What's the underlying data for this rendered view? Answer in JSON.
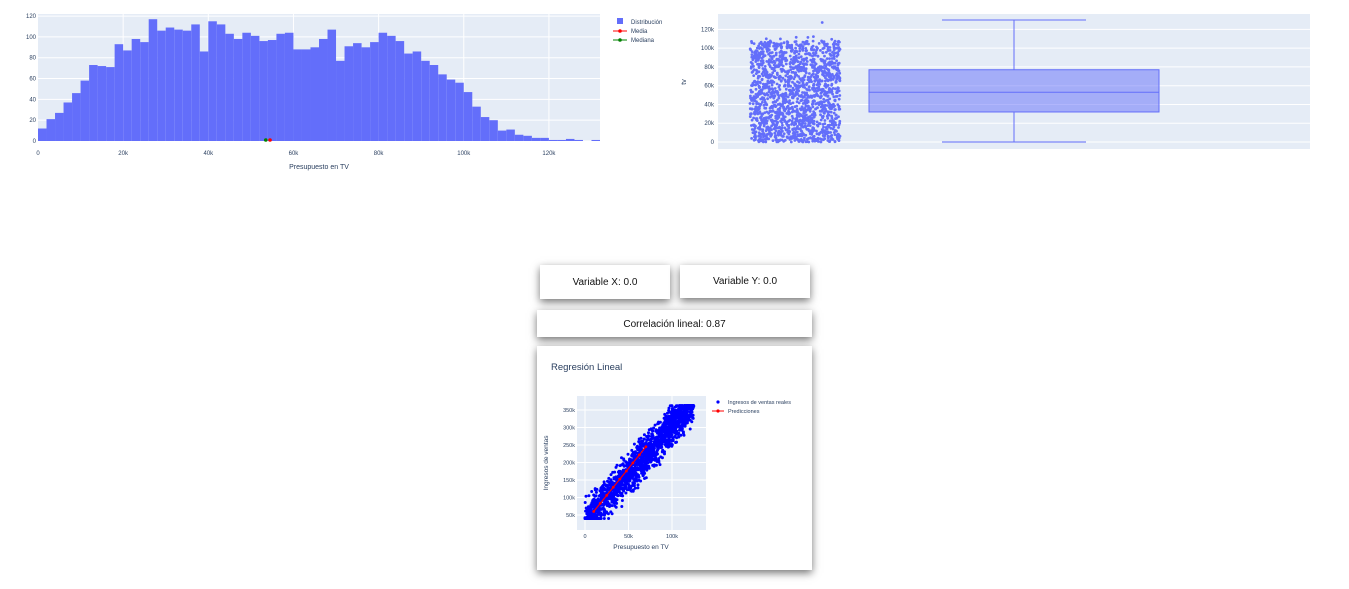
{
  "histogram": {
    "xlabel": "Presupuesto en TV",
    "x_ticks": [
      "0",
      "20k",
      "40k",
      "60k",
      "80k",
      "100k",
      "120k"
    ],
    "y_ticks": [
      "0",
      "20",
      "40",
      "60",
      "80",
      "100",
      "120"
    ],
    "legend": {
      "dist": "Distribución",
      "mean": "Media",
      "median": "Mediana"
    },
    "colors": {
      "bars": "#636efa",
      "mean": "#ff0000",
      "median": "#008000",
      "plot_bg": "#e5ecf6"
    }
  },
  "boxplot": {
    "ylabel": "tv",
    "y_ticks": [
      "0",
      "20k",
      "40k",
      "60k",
      "80k",
      "100k",
      "120k"
    ],
    "color": "#636efa"
  },
  "variable_x": "Variable X: 0.0",
  "variable_y": "Variable Y: 0.0",
  "correlation": "Correlación lineal: 0.87",
  "regression": {
    "title": "Regresión Lineal",
    "xlabel": "Presupuesto en TV",
    "ylabel": "Ingresos de ventas",
    "x_ticks": [
      "0",
      "50k",
      "100k"
    ],
    "y_ticks": [
      "50k",
      "100k",
      "150k",
      "200k",
      "250k",
      "300k",
      "350k"
    ],
    "legend": {
      "real": "Ingresos de ventas reales",
      "pred": "Predicciones"
    },
    "colors": {
      "points": "#0000ff",
      "line": "#ff0000"
    }
  },
  "chart_data": [
    {
      "type": "bar",
      "xlabel": "Presupuesto en TV",
      "ylabel": "",
      "xlim": [
        0,
        132000
      ],
      "ylim": [
        0,
        122
      ],
      "bin_width": 2000,
      "bin_start": 0,
      "values": [
        12,
        21,
        27,
        37,
        46,
        58,
        73,
        72,
        71,
        93,
        87,
        98,
        95,
        117,
        106,
        109,
        107,
        106,
        112,
        86,
        115,
        112,
        103,
        98,
        104,
        101,
        96,
        97,
        103,
        104,
        88,
        88,
        90,
        98,
        107,
        77,
        91,
        94,
        90,
        95,
        104,
        101,
        96,
        84,
        86,
        77,
        73,
        64,
        59,
        56,
        47,
        33,
        23,
        20,
        10,
        11,
        6,
        5,
        3,
        3,
        1,
        1,
        2,
        1,
        0,
        1
      ],
      "mean": 54500,
      "median": 53500,
      "legend": [
        "Distribución",
        "Media",
        "Mediana"
      ],
      "grid": true,
      "legend_position": "right"
    },
    {
      "type": "box",
      "ylabel": "tv",
      "ylim": [
        0,
        130000
      ],
      "min": 0,
      "q1": 32000,
      "median": 53000,
      "q3": 77000,
      "max": 130000,
      "points": "all",
      "grid": true
    },
    {
      "type": "scatter",
      "title": "Regresión Lineal",
      "xlabel": "Presupuesto en TV",
      "ylabel": "Ingresos de ventas",
      "xlim": [
        -5000,
        140000
      ],
      "ylim": [
        20000,
        370000
      ],
      "series": [
        {
          "name": "Ingresos de ventas reales",
          "distribution": "y ≈ 2.75·x + 30000, x in [0, 125000]"
        },
        {
          "name": "Predicciones",
          "x": [
            10000,
            70000
          ],
          "y": [
            60000,
            245000
          ]
        }
      ],
      "legend_position": "right",
      "grid": true
    }
  ]
}
